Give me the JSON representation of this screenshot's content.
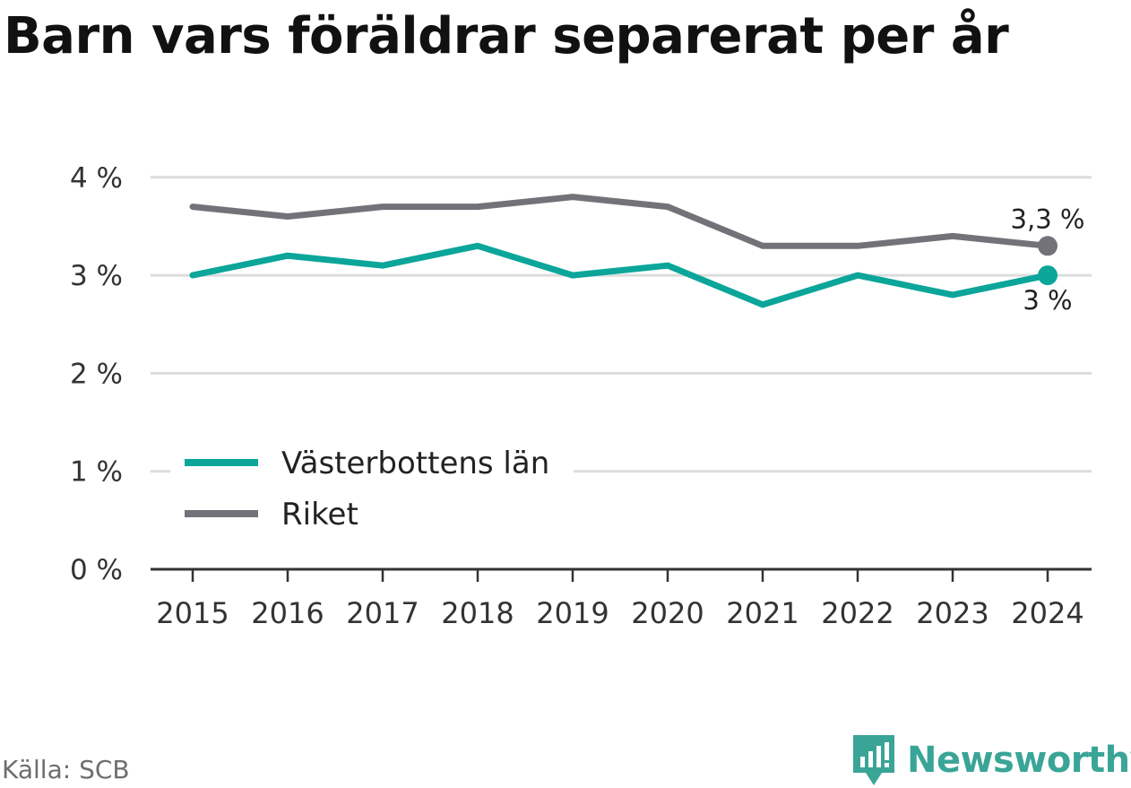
{
  "title": "Barn vars föräldrar separerat per år",
  "source": "Källa: SCB",
  "brand": "Newsworthy",
  "colors": {
    "vasterbotten": "#0ba59a",
    "riket": "#737278",
    "grid": "#dcdcdc",
    "axis": "#333333"
  },
  "chart_data": {
    "type": "line",
    "categories": [
      "2015",
      "2016",
      "2017",
      "2018",
      "2019",
      "2020",
      "2021",
      "2022",
      "2023",
      "2024"
    ],
    "series": [
      {
        "name": "Västerbottens län",
        "values": [
          3.0,
          3.2,
          3.1,
          3.3,
          3.0,
          3.1,
          2.7,
          3.0,
          2.8,
          3.0
        ],
        "end_label": "3 %"
      },
      {
        "name": "Riket",
        "values": [
          3.7,
          3.6,
          3.7,
          3.7,
          3.8,
          3.7,
          3.3,
          3.3,
          3.4,
          3.3
        ],
        "end_label": "3,3 %"
      }
    ],
    "ylim": [
      0,
      4
    ],
    "yticks": [
      0,
      1,
      2,
      3,
      4
    ],
    "ytick_labels": [
      "0 %",
      "1 %",
      "2 %",
      "3 %",
      "4 %"
    ],
    "grid": true,
    "legend": "bottom-left"
  }
}
